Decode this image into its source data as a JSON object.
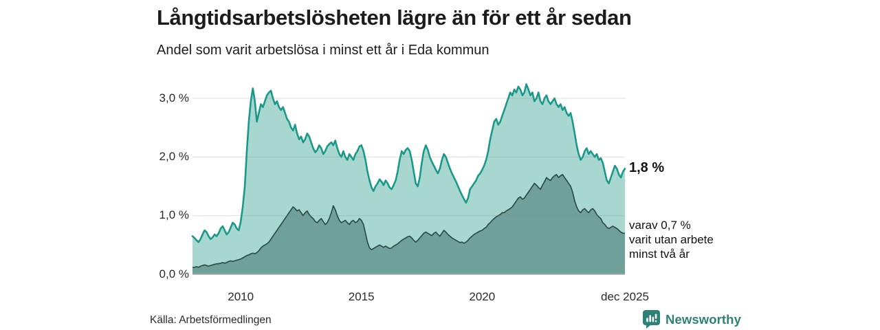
{
  "title": "Långtidsarbetslösheten lägre än för ett år sedan",
  "subtitle": "Andel som varit arbetslösa i minst ett år i Eda kommun",
  "source": "Källa: Arbetsförmedlingen",
  "branding": {
    "name": "Newsworthy"
  },
  "annotations": {
    "latest_total": "1,8 %",
    "latest_two_years": "varav 0,7 %\nvarit utan arbete\nminst två år"
  },
  "colors": {
    "total_fill": "#A8D7CF",
    "total_line": "#1A998B",
    "two_year_fill": "#6FA19A",
    "two_year_line": "#2E4C46",
    "grid": "rgba(130,130,130,0.28)",
    "baseline": "#ADADAD",
    "brand": "#2E8176",
    "title_text": "#1C1C1C"
  },
  "chart_data": {
    "type": "area",
    "x_unit": "month",
    "x_range": [
      2008.0,
      2025.9167
    ],
    "ylim": [
      0,
      3.3
    ],
    "grid": "horizontal",
    "legend": "none",
    "y_ticks": [
      {
        "label": "0,0 %",
        "value": 0
      },
      {
        "label": "1,0 %",
        "value": 1
      },
      {
        "label": "2,0 %",
        "value": 2
      },
      {
        "label": "3,0 %",
        "value": 3
      }
    ],
    "x_ticks": [
      {
        "label": "2010",
        "t": 2010.0
      },
      {
        "label": "2015",
        "t": 2015.0
      },
      {
        "label": "2020",
        "t": 2020.0
      },
      {
        "label": "dec 2025",
        "t": 2025.9167
      }
    ],
    "series": [
      {
        "name": "Arbetslösa minst ett år (andel, %)",
        "role": "total",
        "latest_value": 1.8,
        "values": [
          0.65,
          0.62,
          0.58,
          0.55,
          0.6,
          0.68,
          0.75,
          0.72,
          0.65,
          0.6,
          0.63,
          0.68,
          0.65,
          0.7,
          0.78,
          0.82,
          0.75,
          0.68,
          0.72,
          0.8,
          0.88,
          0.85,
          0.78,
          0.75,
          0.9,
          1.15,
          1.5,
          2.1,
          2.6,
          2.95,
          3.17,
          2.95,
          2.6,
          2.75,
          2.9,
          2.85,
          2.95,
          3.05,
          3.1,
          3.13,
          3.0,
          2.9,
          2.95,
          2.85,
          2.8,
          2.85,
          2.75,
          2.65,
          2.6,
          2.5,
          2.45,
          2.55,
          2.4,
          2.3,
          2.35,
          2.25,
          2.3,
          2.4,
          2.35,
          2.25,
          2.15,
          2.08,
          2.12,
          2.2,
          2.15,
          2.05,
          2.1,
          2.18,
          2.22,
          2.25,
          2.2,
          2.28,
          2.15,
          2.05,
          2.0,
          2.1,
          2.0,
          1.95,
          2.05,
          2.0,
          1.95,
          2.05,
          2.1,
          2.18,
          2.2,
          2.1,
          1.95,
          1.75,
          1.6,
          1.48,
          1.42,
          1.5,
          1.55,
          1.62,
          1.58,
          1.52,
          1.6,
          1.55,
          1.48,
          1.45,
          1.52,
          1.6,
          1.75,
          1.95,
          2.1,
          2.05,
          2.12,
          2.15,
          2.1,
          1.95,
          1.75,
          1.55,
          1.5,
          1.65,
          1.9,
          2.1,
          2.2,
          2.12,
          2.0,
          1.92,
          1.85,
          1.78,
          1.72,
          1.8,
          1.95,
          2.05,
          2.0,
          1.9,
          1.8,
          1.72,
          1.65,
          1.58,
          1.5,
          1.42,
          1.35,
          1.28,
          1.22,
          1.3,
          1.45,
          1.5,
          1.55,
          1.6,
          1.68,
          1.72,
          1.78,
          1.85,
          1.95,
          2.1,
          2.3,
          2.45,
          2.6,
          2.65,
          2.55,
          2.6,
          2.7,
          2.8,
          2.9,
          3.0,
          3.1,
          3.05,
          3.15,
          3.1,
          3.2,
          3.15,
          3.05,
          3.1,
          3.24,
          3.15,
          3.05,
          3.1,
          2.95,
          3.0,
          3.1,
          2.95,
          2.9,
          3.0,
          3.05,
          2.95,
          2.9,
          2.95,
          3.0,
          2.9,
          2.85,
          2.9,
          2.8,
          2.85,
          2.75,
          2.7,
          2.75,
          2.6,
          2.4,
          2.2,
          2.05,
          1.95,
          2.0,
          2.1,
          2.15,
          2.05,
          2.1,
          2.05,
          2.0,
          2.05,
          1.95,
          1.98,
          1.9,
          1.75,
          1.6,
          1.55,
          1.65,
          1.75,
          1.85,
          1.8,
          1.7,
          1.65,
          1.75,
          1.8
        ]
      },
      {
        "name": "varav utan arbete minst två år (andel, %)",
        "role": "two_year",
        "latest_value": 0.7,
        "values": [
          0.12,
          0.12,
          0.13,
          0.12,
          0.14,
          0.15,
          0.16,
          0.15,
          0.14,
          0.15,
          0.16,
          0.17,
          0.18,
          0.18,
          0.19,
          0.2,
          0.19,
          0.2,
          0.22,
          0.23,
          0.22,
          0.23,
          0.24,
          0.25,
          0.26,
          0.28,
          0.3,
          0.32,
          0.33,
          0.35,
          0.36,
          0.35,
          0.37,
          0.4,
          0.45,
          0.48,
          0.5,
          0.52,
          0.55,
          0.6,
          0.65,
          0.7,
          0.75,
          0.8,
          0.85,
          0.9,
          0.95,
          1.0,
          1.05,
          1.1,
          1.15,
          1.12,
          1.08,
          1.1,
          1.05,
          1.0,
          1.05,
          1.08,
          1.02,
          0.98,
          0.95,
          0.9,
          0.88,
          0.92,
          0.95,
          0.9,
          0.85,
          0.88,
          0.95,
          1.05,
          1.17,
          1.1,
          1.0,
          0.92,
          0.88,
          0.9,
          0.92,
          0.88,
          0.85,
          0.9,
          0.92,
          0.88,
          0.9,
          0.95,
          0.92,
          0.85,
          0.7,
          0.55,
          0.45,
          0.42,
          0.44,
          0.46,
          0.48,
          0.5,
          0.48,
          0.46,
          0.48,
          0.46,
          0.44,
          0.45,
          0.48,
          0.5,
          0.52,
          0.55,
          0.58,
          0.6,
          0.62,
          0.64,
          0.65,
          0.62,
          0.58,
          0.55,
          0.58,
          0.62,
          0.66,
          0.7,
          0.72,
          0.7,
          0.68,
          0.66,
          0.7,
          0.72,
          0.68,
          0.65,
          0.7,
          0.75,
          0.72,
          0.68,
          0.65,
          0.62,
          0.6,
          0.58,
          0.56,
          0.54,
          0.55,
          0.53,
          0.55,
          0.58,
          0.62,
          0.65,
          0.68,
          0.7,
          0.72,
          0.74,
          0.75,
          0.78,
          0.8,
          0.85,
          0.88,
          0.92,
          0.95,
          0.98,
          1.0,
          1.02,
          1.05,
          1.05,
          1.08,
          1.1,
          1.12,
          1.15,
          1.2,
          1.25,
          1.3,
          1.32,
          1.28,
          1.3,
          1.35,
          1.4,
          1.45,
          1.5,
          1.55,
          1.52,
          1.48,
          1.45,
          1.52,
          1.58,
          1.65,
          1.62,
          1.6,
          1.65,
          1.68,
          1.7,
          1.65,
          1.68,
          1.7,
          1.65,
          1.6,
          1.55,
          1.5,
          1.4,
          1.25,
          1.15,
          1.08,
          1.05,
          1.1,
          1.12,
          1.08,
          1.05,
          1.1,
          1.12,
          1.08,
          1.02,
          0.98,
          0.95,
          0.88,
          0.85,
          0.8,
          0.78,
          0.8,
          0.82,
          0.8,
          0.78,
          0.75,
          0.72,
          0.7,
          0.7
        ]
      }
    ]
  }
}
